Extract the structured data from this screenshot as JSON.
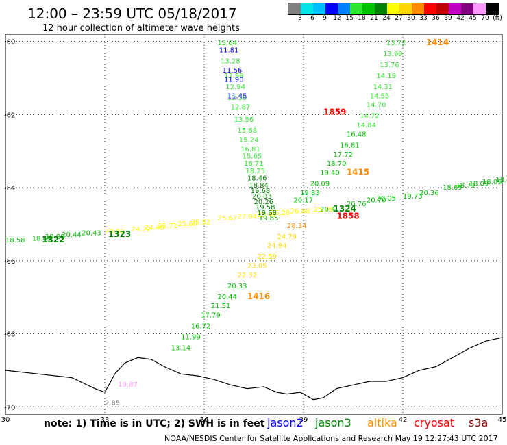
{
  "header": {
    "title": "12:00 – 23:59 UTC 05/18/2017",
    "subtitle": "12 hour collection of altimeter wave heights"
  },
  "legend": {
    "colors": [
      "#808080",
      "#00e5e5",
      "#00bfff",
      "#0000ff",
      "#0080ff",
      "#33e533",
      "#00c000",
      "#008000",
      "#ffff00",
      "#ffd700",
      "#ff8c00",
      "#ff0000",
      "#c00000",
      "#c000c0",
      "#800080",
      "#ff99ff",
      "#000000"
    ],
    "labels": [
      "3",
      "6",
      "9",
      "12",
      "15",
      "18",
      "21",
      "24",
      "27",
      "30",
      "33",
      "36",
      "39",
      "42",
      "45",
      "70",
      "(ft)"
    ]
  },
  "map": {
    "lat_labels": [
      "-60",
      "-62",
      "-64",
      "-66",
      "-68",
      "-70"
    ],
    "lon_labels": [
      "30",
      "33",
      "36",
      "39",
      "42",
      "45"
    ],
    "lat_lines": [
      -60,
      -62,
      -64,
      -66,
      -68,
      -70
    ],
    "lon_lines": [
      30,
      33,
      36,
      39,
      42,
      45
    ],
    "bounds": {
      "lon_min": 30,
      "lon_max": 45,
      "lat_max": -59.8,
      "lat_min": -70.2
    },
    "coastline": [
      [
        30,
        -69.0
      ],
      [
        31,
        -69.1
      ],
      [
        32,
        -69.2
      ],
      [
        32.7,
        -69.5
      ],
      [
        33.0,
        -69.6
      ],
      [
        33.3,
        -69.1
      ],
      [
        33.6,
        -68.8
      ],
      [
        34.0,
        -68.65
      ],
      [
        34.4,
        -68.7
      ],
      [
        34.8,
        -68.9
      ],
      [
        35.3,
        -69.1
      ],
      [
        35.8,
        -69.15
      ],
      [
        36.3,
        -69.25
      ],
      [
        36.8,
        -69.4
      ],
      [
        37.3,
        -69.5
      ],
      [
        37.8,
        -69.45
      ],
      [
        38.2,
        -69.6
      ],
      [
        38.5,
        -69.65
      ],
      [
        38.9,
        -69.6
      ],
      [
        39.3,
        -69.8
      ],
      [
        39.6,
        -69.75
      ],
      [
        40.0,
        -69.5
      ],
      [
        40.5,
        -69.4
      ],
      [
        41.0,
        -69.3
      ],
      [
        41.5,
        -69.3
      ],
      [
        42.0,
        -69.2
      ],
      [
        42.5,
        -69.0
      ],
      [
        43.0,
        -68.9
      ],
      [
        43.5,
        -68.65
      ],
      [
        44.0,
        -68.4
      ],
      [
        44.5,
        -68.2
      ],
      [
        45,
        -68.1
      ]
    ]
  },
  "tracks": [
    {
      "color": "#00c000",
      "points": [
        {
          "lon": 30.0,
          "lat": -65.5,
          "v": "18.58"
        },
        {
          "lon": 30.8,
          "lat": -65.45,
          "v": "18.45"
        },
        {
          "lon": 31.2,
          "lat": -65.4,
          "v": "19.80"
        },
        {
          "lon": 31.7,
          "lat": -65.35,
          "v": "20.44"
        },
        {
          "lon": 32.3,
          "lat": -65.3,
          "v": "20.43"
        },
        {
          "lon": 39.5,
          "lat": -64.65,
          "v": "20.4"
        },
        {
          "lon": 40.3,
          "lat": -64.5,
          "v": "20.76"
        },
        {
          "lon": 40.9,
          "lat": -64.4,
          "v": "20.70"
        },
        {
          "lon": 41.2,
          "lat": -64.35,
          "v": "20.05"
        },
        {
          "lon": 42.0,
          "lat": -64.3,
          "v": "19.73"
        },
        {
          "lon": 42.5,
          "lat": -64.2,
          "v": "20.36"
        },
        {
          "lon": 43.2,
          "lat": -64.05,
          "v": "18.65"
        },
        {
          "lon": 43.6,
          "lat": -64.0,
          "v": "18.71"
        },
        {
          "lon": 44.0,
          "lat": -63.95,
          "v": "18.09"
        },
        {
          "lon": 44.4,
          "lat": -63.9,
          "v": "18.09"
        },
        {
          "lon": 44.8,
          "lat": -63.85,
          "v": "18.39"
        },
        {
          "lon": 45.1,
          "lat": -63.8,
          "v": "17.04"
        }
      ]
    },
    {
      "color": "#ffff00",
      "points": [
        {
          "lon": 33.0,
          "lat": -65.25,
          "v": "20.92"
        },
        {
          "lon": 33.8,
          "lat": -65.2,
          "v": "24.22"
        },
        {
          "lon": 34.2,
          "lat": -65.15,
          "v": "24.48"
        },
        {
          "lon": 34.6,
          "lat": -65.1,
          "v": "25.71"
        },
        {
          "lon": 35.2,
          "lat": -65.05,
          "v": "25.60"
        },
        {
          "lon": 35.6,
          "lat": -65.0,
          "v": "25.52"
        },
        {
          "lon": 36.4,
          "lat": -64.9,
          "v": "25.67"
        },
        {
          "lon": 37.0,
          "lat": -64.85,
          "v": "27.94"
        },
        {
          "lon": 37.6,
          "lat": -64.8,
          "v": "25.42"
        },
        {
          "lon": 38.0,
          "lat": -64.75,
          "v": "26.28"
        },
        {
          "lon": 38.6,
          "lat": -64.7,
          "v": "26.88"
        },
        {
          "lon": 39.3,
          "lat": -64.65,
          "v": "25.76"
        }
      ]
    },
    {
      "color": "#33e533",
      "points": [
        {
          "lon": 36.4,
          "lat": -60.1,
          "v": "13.64"
        },
        {
          "lon": 36.5,
          "lat": -60.6,
          "v": "13.28"
        },
        {
          "lon": 36.6,
          "lat": -61.0,
          "v": "12.99"
        },
        {
          "lon": 36.65,
          "lat": -61.3,
          "v": "12.94"
        },
        {
          "lon": 36.7,
          "lat": -61.6,
          "v": "12.59"
        },
        {
          "lon": 36.8,
          "lat": -61.85,
          "v": "12.87"
        },
        {
          "lon": 36.9,
          "lat": -62.2,
          "v": "13.56"
        },
        {
          "lon": 37.0,
          "lat": -62.5,
          "v": "15.68"
        },
        {
          "lon": 37.05,
          "lat": -62.75,
          "v": "15.24"
        },
        {
          "lon": 37.1,
          "lat": -63.0,
          "v": "16.81"
        },
        {
          "lon": 37.15,
          "lat": -63.2,
          "v": "15.65"
        },
        {
          "lon": 37.2,
          "lat": -63.4,
          "v": "16.71"
        },
        {
          "lon": 37.25,
          "lat": -63.6,
          "v": "18.25"
        }
      ]
    },
    {
      "color": "#0000ff",
      "points": [
        {
          "lon": 36.45,
          "lat": -60.3,
          "v": "11.81"
        },
        {
          "lon": 36.55,
          "lat": -60.85,
          "v": "11.56"
        },
        {
          "lon": 36.6,
          "lat": -61.1,
          "v": "11.90"
        },
        {
          "lon": 36.7,
          "lat": -61.55,
          "v": "11.45"
        }
      ]
    },
    {
      "color": "#008000",
      "points": [
        {
          "lon": 37.3,
          "lat": -63.8,
          "v": "18.46"
        },
        {
          "lon": 37.35,
          "lat": -64.0,
          "v": "18.84"
        },
        {
          "lon": 37.4,
          "lat": -64.15,
          "v": "19.68"
        },
        {
          "lon": 37.45,
          "lat": -64.3,
          "v": "20.03"
        },
        {
          "lon": 37.5,
          "lat": -64.45,
          "v": "20.26"
        },
        {
          "lon": 37.55,
          "lat": -64.6,
          "v": "19.58"
        },
        {
          "lon": 37.6,
          "lat": -64.75,
          "v": "19.68"
        },
        {
          "lon": 37.65,
          "lat": -64.9,
          "v": "19.65"
        }
      ]
    },
    {
      "color": "#33e533",
      "points": [
        {
          "lon": 41.5,
          "lat": -60.1,
          "v": "13.72"
        },
        {
          "lon": 41.4,
          "lat": -60.4,
          "v": "13.99"
        },
        {
          "lon": 41.3,
          "lat": -60.7,
          "v": "13.76"
        },
        {
          "lon": 41.2,
          "lat": -61.0,
          "v": "14.19"
        },
        {
          "lon": 41.1,
          "lat": -61.3,
          "v": "14.31"
        },
        {
          "lon": 41.0,
          "lat": -61.55,
          "v": "14.55"
        },
        {
          "lon": 40.9,
          "lat": -61.8,
          "v": "14.70"
        },
        {
          "lon": 40.7,
          "lat": -62.1,
          "v": "14.72"
        },
        {
          "lon": 40.6,
          "lat": -62.35,
          "v": "14.84"
        }
      ]
    },
    {
      "color": "#00c000",
      "points": [
        {
          "lon": 40.3,
          "lat": -62.6,
          "v": "16.48"
        },
        {
          "lon": 40.1,
          "lat": -62.9,
          "v": "16.81"
        },
        {
          "lon": 39.9,
          "lat": -63.15,
          "v": "17.72"
        },
        {
          "lon": 39.7,
          "lat": -63.4,
          "v": "18.70"
        },
        {
          "lon": 39.5,
          "lat": -63.65,
          "v": "19.40"
        },
        {
          "lon": 39.2,
          "lat": -63.95,
          "v": "20.09"
        },
        {
          "lon": 38.9,
          "lat": -64.2,
          "v": "19.83"
        },
        {
          "lon": 38.7,
          "lat": -64.4,
          "v": "20.17"
        }
      ]
    },
    {
      "color": "#ff8c00",
      "points": [
        {
          "lon": 38.5,
          "lat": -65.1,
          "v": "28.34"
        }
      ]
    },
    {
      "color": "#ffd700",
      "points": [
        {
          "lon": 38.2,
          "lat": -65.4,
          "v": "24.79"
        },
        {
          "lon": 37.9,
          "lat": -65.65,
          "v": "24.94"
        },
        {
          "lon": 37.6,
          "lat": -65.95,
          "v": "22.59"
        },
        {
          "lon": 37.3,
          "lat": -66.2,
          "v": "23.05"
        },
        {
          "lon": 37.0,
          "lat": -66.45,
          "v": "22.32"
        }
      ]
    },
    {
      "color": "#00c000",
      "points": [
        {
          "lon": 36.7,
          "lat": -66.75,
          "v": "20.33"
        },
        {
          "lon": 36.4,
          "lat": -67.05,
          "v": "20.44"
        },
        {
          "lon": 36.2,
          "lat": -67.3,
          "v": "21.51"
        },
        {
          "lon": 35.9,
          "lat": -67.55,
          "v": "17.79"
        },
        {
          "lon": 35.6,
          "lat": -67.85,
          "v": "16.72"
        },
        {
          "lon": 35.3,
          "lat": -68.15,
          "v": "11.99"
        },
        {
          "lon": 35.0,
          "lat": -68.45,
          "v": "13.14"
        }
      ]
    },
    {
      "color": "#ff99ff",
      "points": [
        {
          "lon": 33.4,
          "lat": -69.45,
          "v": "19.87"
        }
      ]
    },
    {
      "color": "#808080",
      "points": [
        {
          "lon": 33.0,
          "lat": -69.95,
          "v": "2.85"
        }
      ]
    }
  ],
  "pass_labels": [
    {
      "text": "1414",
      "color": "#ff8c00",
      "lon": 42.7,
      "lat": -60.1
    },
    {
      "text": "1859",
      "color": "#ff0000",
      "lon": 39.6,
      "lat": -62.0
    },
    {
      "text": "1415",
      "color": "#ff8c00",
      "lon": 40.3,
      "lat": -63.65
    },
    {
      "text": "1324",
      "color": "#008000",
      "lon": 39.9,
      "lat": -64.65
    },
    {
      "text": "1858",
      "color": "#ff0000",
      "lon": 40.0,
      "lat": -64.85
    },
    {
      "text": "1323",
      "color": "#008000",
      "lon": 33.1,
      "lat": -65.35
    },
    {
      "text": "1322",
      "color": "#008000",
      "lon": 31.1,
      "lat": -65.5
    },
    {
      "text": "1416",
      "color": "#ff8c00",
      "lon": 37.3,
      "lat": -67.05
    }
  ],
  "footer": {
    "note": "note: 1) Time is in UTC; 2) SWH is in feet",
    "satellites": [
      {
        "name": "jason2",
        "color": "#0000ff"
      },
      {
        "name": "jason3",
        "color": "#008000"
      },
      {
        "name": "altika",
        "color": "#ff8c00"
      },
      {
        "name": "cryosat",
        "color": "#ff0000"
      },
      {
        "name": "s3a",
        "color": "#8b0000"
      }
    ],
    "credit": "NOAA/NESDIS Center for Satellite Applications and Research   May 19 12:27:43 UTC 2017"
  }
}
